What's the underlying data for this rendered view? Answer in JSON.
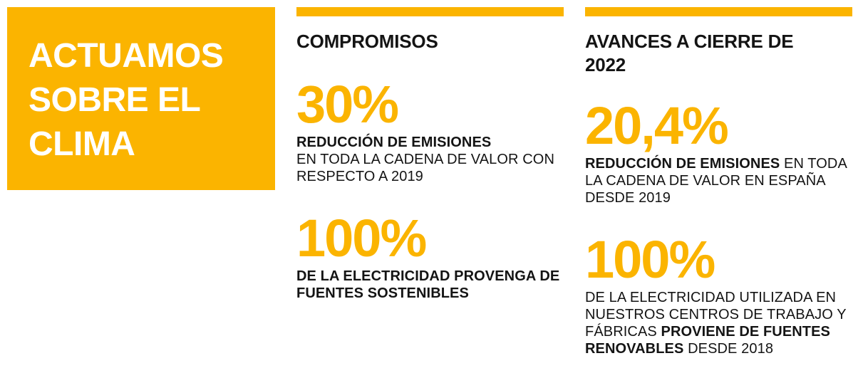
{
  "colors": {
    "accent": "#fbb400",
    "text": "#141414",
    "hero_text": "#ffffff"
  },
  "hero": {
    "lines": [
      "ACTUAMOS",
      "SOBRE EL",
      "CLIMA"
    ]
  },
  "commitments": {
    "heading": "COMPROMISOS",
    "stat1": {
      "value": "30%",
      "bold": "REDUCCIÓN DE EMISIONES",
      "rest": "EN TODA LA CADENA DE VALOR CON RESPECTO A 2019"
    },
    "stat2": {
      "value": "100%",
      "bold": "DE LA ELECTRICIDAD PROVENGA DE FUENTES SOSTENIBLES"
    }
  },
  "progress": {
    "heading": "AVANCES A CIERRE DE 2022",
    "stat1": {
      "value": "20,4%",
      "bold": "REDUCCIÓN DE EMISIONES",
      "rest": "EN TODA LA CADENA DE VALOR EN ESPAÑA DESDE 2019"
    },
    "stat2": {
      "value": "100%",
      "lead": "DE LA ELECTRICIDAD UTILIZADA EN NUESTROS CENTROS DE TRABAJO Y FÁBRICAS",
      "bold": "PROVIENE DE FUENTES RENOVABLES",
      "rest": "DESDE 2018"
    }
  }
}
